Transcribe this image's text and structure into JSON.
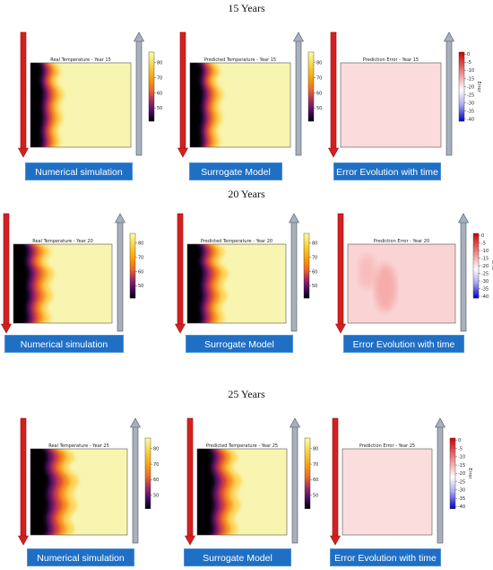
{
  "rows": [
    {
      "title": "15 Years",
      "panels": [
        {
          "kind": "temp",
          "plot_title": "Real Temperature - Year 15",
          "caption": "Numerical simulation",
          "ticks": [
            "80",
            "70",
            "60",
            "50"
          ],
          "colorbar_label": ""
        },
        {
          "kind": "temp",
          "plot_title": "Predicted Temperature - Year 15",
          "caption": "Surrogate Model",
          "ticks": [
            "80",
            "70",
            "60",
            "50"
          ],
          "colorbar_label": ""
        },
        {
          "kind": "error",
          "plot_title": "Prediction Error - Year 15",
          "caption": "Error Evolution with time",
          "ticks": [
            "0",
            "-5",
            "-10",
            "-15",
            "-20",
            "-25",
            "-30",
            "-35",
            "-40"
          ],
          "colorbar_label": "Error",
          "error_level": 0.12
        }
      ]
    },
    {
      "title": "20 Years",
      "panels": [
        {
          "kind": "temp",
          "plot_title": "Real Temperature - Year 20",
          "caption": "Numerical simulation",
          "ticks": [
            "80",
            "70",
            "60",
            "50"
          ],
          "colorbar_label": ""
        },
        {
          "kind": "temp",
          "plot_title": "Predicted Temperature - Year 20",
          "caption": "Surrogate Model",
          "ticks": [
            "80",
            "70",
            "60",
            "50"
          ],
          "colorbar_label": ""
        },
        {
          "kind": "error",
          "plot_title": "Prediction Error - Year 20",
          "caption": "Error Evolution with time",
          "ticks": [
            "0",
            "-5",
            "-10",
            "-15",
            "-20",
            "-25",
            "-30",
            "-35",
            "-40"
          ],
          "colorbar_label": "Error",
          "error_level": 0.25
        }
      ]
    },
    {
      "title": "25 Years",
      "panels": [
        {
          "kind": "temp",
          "plot_title": "Real Temperature - Year 25",
          "caption": "Numerical simulation",
          "ticks": [
            "80",
            "70",
            "60",
            "50"
          ],
          "colorbar_label": ""
        },
        {
          "kind": "temp",
          "plot_title": "Predicted Temperature - Year 25",
          "caption": "Surrogate Model",
          "ticks": [
            "80",
            "70",
            "60",
            "50"
          ],
          "colorbar_label": ""
        },
        {
          "kind": "error",
          "plot_title": "Prediction Error - Year 25",
          "caption": "Error Evolution with time",
          "ticks": [
            "0",
            "-5",
            "-10",
            "-15",
            "-20",
            "-25",
            "-30",
            "-35",
            "-40"
          ],
          "colorbar_label": "Error",
          "error_level": 0.08
        }
      ]
    }
  ],
  "colors": {
    "injection_arrow": "#d42020",
    "production_arrow": "#a8b0bb",
    "caption_bg": "#1f6fc5",
    "hot": "#f8f5b0",
    "cold": "#000000",
    "error_fill": "#f9c9c9"
  }
}
